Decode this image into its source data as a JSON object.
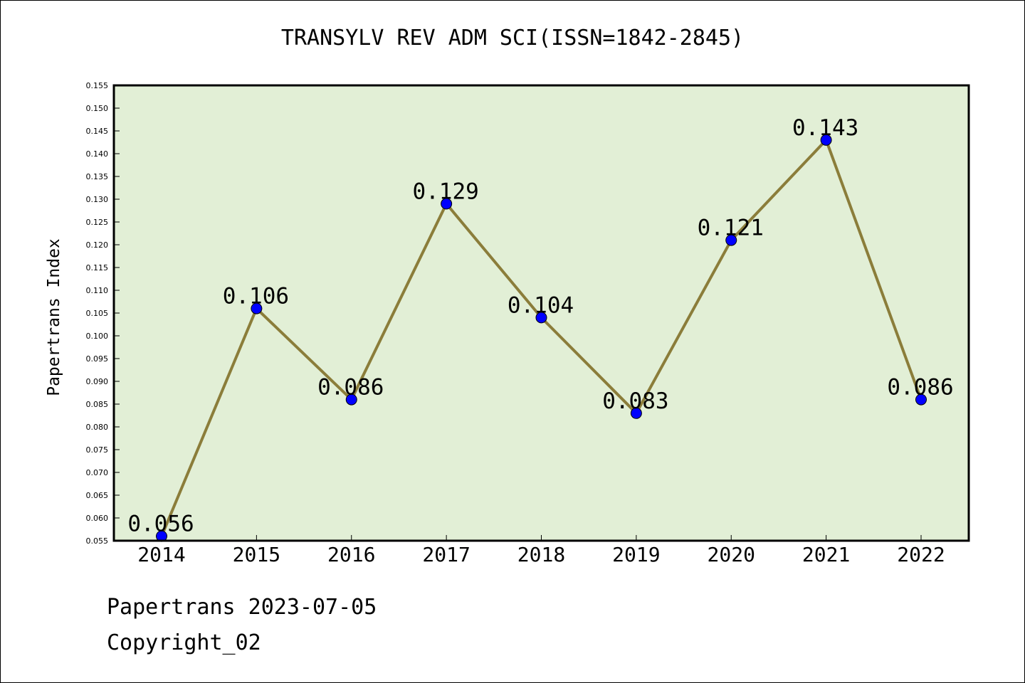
{
  "footer": {
    "line1": "Papertrans 2023-07-05",
    "line2": "Copyright_02"
  },
  "chart_data": {
    "type": "line",
    "title": "TRANSYLV REV ADM SCI(ISSN=1842-2845)",
    "xlabel": "",
    "ylabel": "Papertrans Index",
    "categories": [
      "2014",
      "2015",
      "2016",
      "2017",
      "2018",
      "2019",
      "2020",
      "2021",
      "2022"
    ],
    "values": [
      0.056,
      0.106,
      0.086,
      0.129,
      0.104,
      0.083,
      0.121,
      0.143,
      0.086
    ],
    "data_labels": [
      "0.056",
      "0.106",
      "0.086",
      "0.129",
      "0.104",
      "0.083",
      "0.121",
      "0.143",
      "0.086"
    ],
    "ylim": [
      0.055,
      0.155
    ],
    "yticks": [
      "0.055",
      "0.060",
      "0.065",
      "0.070",
      "0.075",
      "0.080",
      "0.085",
      "0.090",
      "0.095",
      "0.100",
      "0.105",
      "0.110",
      "0.115",
      "0.120",
      "0.125",
      "0.130",
      "0.135",
      "0.140",
      "0.145",
      "0.150",
      "0.155"
    ],
    "grid": false,
    "colors": {
      "plot_background": "#e2efd6",
      "line": "#8b7d3a",
      "marker": "#0000ff"
    }
  }
}
